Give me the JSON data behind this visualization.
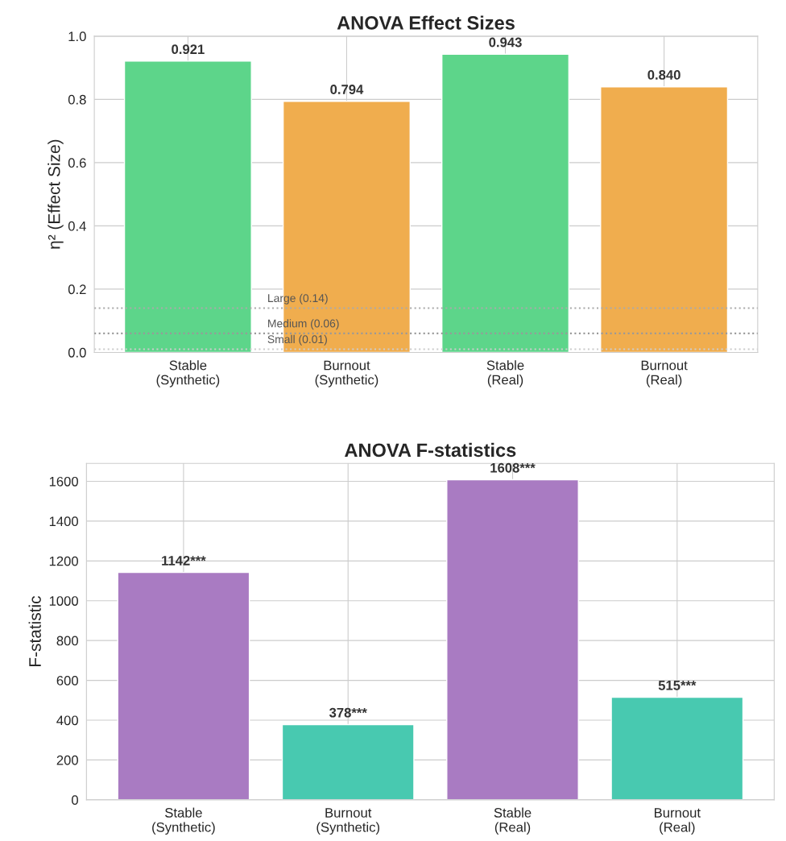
{
  "chart_data": [
    {
      "type": "bar",
      "title": "ANOVA Effect Sizes",
      "ylabel": "η² (Effect Size)",
      "categories": [
        "Stable\n(Synthetic)",
        "Burnout\n(Synthetic)",
        "Stable\n(Real)",
        "Burnout\n(Real)"
      ],
      "values": [
        0.921,
        0.794,
        0.943,
        0.84
      ],
      "colors": [
        "#5dd58a",
        "#f0ad4e",
        "#5dd58a",
        "#f0ad4e"
      ],
      "value_labels": [
        "0.921",
        "0.794",
        "0.943",
        "0.840"
      ],
      "ylim": [
        0,
        1.0
      ],
      "yticks": [
        {
          "value": 0,
          "label": "0.0"
        },
        0.2,
        0.4,
        0.6,
        0.8,
        {
          "value": 1,
          "label": "1.0"
        }
      ],
      "grid": true,
      "ref_lines": [
        {
          "axis": "y",
          "value": 0.01,
          "label": "Small (0.01)",
          "color": "#cccccc",
          "line_style": "dotted"
        },
        {
          "axis": "y",
          "value": 0.06,
          "label": "Medium (0.06)",
          "color": "#999999",
          "line_style": "dotted"
        },
        {
          "axis": "y",
          "value": 0.14,
          "label": "Large (0.14)",
          "color": "#aaaaaa",
          "line_style": "dotted"
        }
      ]
    },
    {
      "type": "bar",
      "title": "ANOVA F-statistics",
      "ylabel": "F-statistic",
      "categories": [
        "Stable\n(Synthetic)",
        "Burnout\n(Synthetic)",
        "Stable\n(Real)",
        "Burnout\n(Real)"
      ],
      "values": [
        1142,
        378,
        1608,
        515
      ],
      "colors": [
        "#a97bc2",
        "#48c9b0",
        "#a97bc2",
        "#48c9b0"
      ],
      "value_labels": [
        "1142***",
        "378***",
        "1608***",
        "515***"
      ],
      "ylim": [
        0,
        1690
      ],
      "yticks": [
        0,
        200,
        400,
        600,
        800,
        1000,
        1200,
        1400,
        1600
      ],
      "grid": true
    }
  ]
}
